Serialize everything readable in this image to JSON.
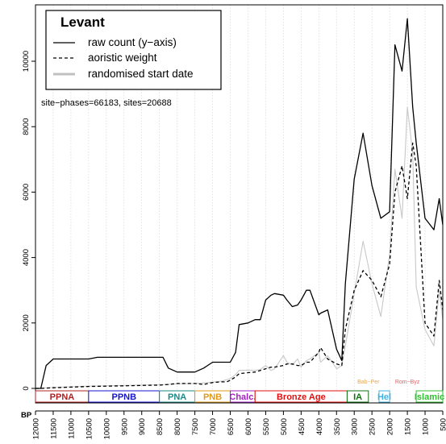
{
  "chart_data": {
    "type": "line",
    "title": "Levant",
    "xlabel": "BP",
    "ylabel": "",
    "xlim": [
      12000,
      500
    ],
    "ylim": [
      0,
      11500
    ],
    "x_ticks": [
      "12000",
      "11500",
      "11000",
      "10500",
      "10000",
      "9500",
      "9000",
      "8500",
      "8000",
      "7500",
      "7000",
      "6500",
      "6000",
      "5500",
      "5000",
      "4500",
      "4000",
      "3500",
      "3000",
      "2500",
      "2000",
      "1500",
      "1000",
      "500"
    ],
    "y_ticks": [
      "0",
      "2000",
      "4000",
      "6000",
      "8000",
      "10000"
    ],
    "x_tick_values": [
      12000,
      11500,
      11000,
      10500,
      10000,
      9500,
      9000,
      8500,
      8000,
      7500,
      7000,
      6500,
      6000,
      5500,
      5000,
      4500,
      4000,
      3500,
      3000,
      2500,
      2000,
      1500,
      1000,
      500
    ],
    "y_tick_values": [
      0,
      2000,
      4000,
      6000,
      8000,
      10000
    ],
    "grid": "vertical dotted",
    "legend_position": "top-left",
    "annotation": "site−phases=66183, sites=20688",
    "series": [
      {
        "name": "raw count (y−axis)",
        "style": "solid",
        "color": "#000000",
        "x": [
          12000,
          11850,
          11700,
          11500,
          11000,
          10500,
          10250,
          10000,
          9500,
          9000,
          8500,
          8400,
          8250,
          8000,
          7750,
          7500,
          7250,
          7000,
          6750,
          6600,
          6500,
          6350,
          6250,
          6000,
          5800,
          5650,
          5500,
          5350,
          5250,
          5000,
          4900,
          4750,
          4600,
          4500,
          4350,
          4250,
          4000,
          3950,
          3750,
          3500,
          3350,
          3250,
          3000,
          2750,
          2500,
          2250,
          2000,
          1850,
          1650,
          1500,
          1350,
          1250,
          1000,
          750,
          600,
          500
        ],
        "y": [
          0,
          0,
          700,
          900,
          900,
          900,
          950,
          950,
          950,
          950,
          950,
          950,
          620,
          500,
          500,
          500,
          620,
          800,
          800,
          800,
          800,
          1100,
          1950,
          2000,
          2100,
          2100,
          2700,
          2850,
          2900,
          2850,
          2700,
          2500,
          2550,
          2700,
          3000,
          3000,
          2250,
          2300,
          2400,
          1200,
          850,
          3200,
          6400,
          7800,
          6200,
          5200,
          5400,
          10500,
          9700,
          11300,
          8600,
          7500,
          5200,
          4850,
          5800,
          5000
        ]
      },
      {
        "name": "aoristic weight",
        "style": "dashed",
        "color": "#000000",
        "x": [
          12000,
          11850,
          11500,
          11000,
          10500,
          10000,
          9500,
          9000,
          8500,
          8250,
          8000,
          7750,
          7500,
          7250,
          7000,
          6750,
          6600,
          6500,
          6350,
          6250,
          6000,
          5800,
          5650,
          5500,
          5350,
          5250,
          5000,
          4900,
          4750,
          4600,
          4500,
          4350,
          4250,
          4000,
          3950,
          3750,
          3500,
          3350,
          3250,
          3000,
          2750,
          2500,
          2250,
          2000,
          1850,
          1650,
          1500,
          1350,
          1250,
          1000,
          750,
          600,
          500
        ],
        "y": [
          0,
          0,
          20,
          40,
          60,
          70,
          80,
          90,
          100,
          120,
          150,
          150,
          150,
          120,
          180,
          200,
          200,
          250,
          350,
          450,
          480,
          500,
          550,
          600,
          650,
          650,
          700,
          750,
          750,
          700,
          700,
          800,
          800,
          1100,
          1250,
          900,
          750,
          700,
          1800,
          3000,
          3600,
          3300,
          2800,
          3800,
          6000,
          6800,
          5800,
          7500,
          6800,
          2000,
          1600,
          3300,
          2400
        ]
      },
      {
        "name": "randomised start date",
        "style": "solid",
        "color": "#c8c8c8",
        "x": [
          12000,
          11500,
          11000,
          10500,
          10000,
          9500,
          9000,
          8500,
          8000,
          7500,
          7000,
          6750,
          6500,
          6350,
          6250,
          6000,
          5800,
          5650,
          5500,
          5350,
          5250,
          5000,
          4900,
          4750,
          4600,
          4500,
          4350,
          4250,
          4000,
          3950,
          3750,
          3500,
          3350,
          3250,
          3000,
          2750,
          2500,
          2250,
          2000,
          1850,
          1650,
          1500,
          1350,
          1250,
          1000,
          750,
          600,
          500
        ],
        "y": [
          0,
          30,
          50,
          70,
          80,
          90,
          100,
          110,
          140,
          150,
          190,
          220,
          300,
          420,
          550,
          560,
          550,
          580,
          700,
          550,
          600,
          1000,
          800,
          720,
          900,
          650,
          850,
          900,
          1100,
          800,
          1000,
          600,
          700,
          1300,
          2900,
          4500,
          3200,
          2200,
          4100,
          6700,
          5200,
          8600,
          7200,
          3100,
          1800,
          1300,
          3000,
          2100
        ]
      }
    ],
    "periods": [
      {
        "label": "PPNA",
        "start": 12000,
        "end": 10500,
        "color": "#b02020"
      },
      {
        "label": "PPNB",
        "start": 10500,
        "end": 8500,
        "color": "#1515cc"
      },
      {
        "label": "PNA",
        "start": 8500,
        "end": 7500,
        "color": "#1a8a8a"
      },
      {
        "label": "PNB",
        "start": 7500,
        "end": 6500,
        "color": "#e09a1a"
      },
      {
        "label": "Chalc.",
        "start": 6500,
        "end": 5800,
        "color": "#a020c0"
      },
      {
        "label": "Bronze Age",
        "start": 5800,
        "end": 3200,
        "color": "#e01010"
      },
      {
        "label": "IA",
        "start": 3200,
        "end": 2600,
        "color": "#107010"
      },
      {
        "label": "Hel",
        "start": 2300,
        "end": 2000,
        "color": "#40b0e0"
      },
      {
        "label": "Islamic",
        "start": 1250,
        "end": 500,
        "color": "#30c030"
      }
    ],
    "overlay_labels": [
      {
        "label": "Bab−Per",
        "position": 2600,
        "color": "#e0a860"
      },
      {
        "label": "Rom−Byz",
        "position": 1500,
        "color": "#e06060"
      }
    ]
  }
}
